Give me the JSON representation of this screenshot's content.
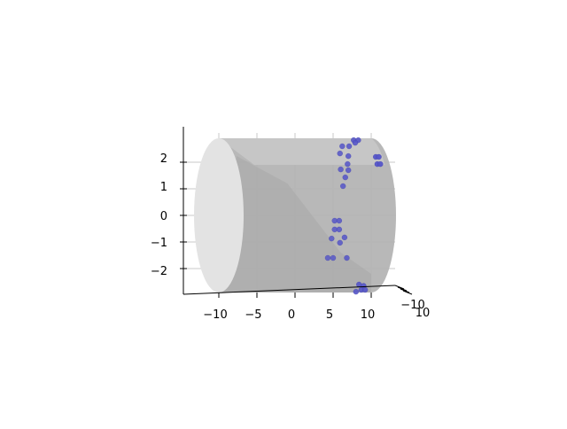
{
  "chart_data": {
    "type": "scatter",
    "projection": "3d",
    "title": "",
    "xlabel": "",
    "ylabel": "",
    "zlabel": "",
    "grid": true,
    "x_ticks": [
      "−10",
      "−5",
      "0",
      "5",
      "10"
    ],
    "z_ticks": [
      "2",
      "1",
      "0",
      "−1",
      "−2"
    ],
    "y_ticks": [
      "−10",
      "10"
    ],
    "xlim": [
      -14.5,
      12.5
    ],
    "zlim": [
      -3,
      3
    ],
    "surface": {
      "type": "cylinder",
      "axis": "x",
      "x_range": [
        -10,
        10
      ],
      "radius": 2.9,
      "color": "#bdbdbd"
    },
    "series": [
      {
        "color": "#5555c8",
        "points": [
          {
            "x": 7.7,
            "z": 2.83
          },
          {
            "x": 8.3,
            "z": 2.83
          },
          {
            "x": 7.9,
            "z": 2.73
          },
          {
            "x": 6.2,
            "z": 2.6
          },
          {
            "x": 7.1,
            "z": 2.6
          },
          {
            "x": 5.9,
            "z": 2.33
          },
          {
            "x": 7.0,
            "z": 2.23
          },
          {
            "x": 10.6,
            "z": 2.2
          },
          {
            "x": 11.0,
            "z": 2.2
          },
          {
            "x": 6.9,
            "z": 1.93
          },
          {
            "x": 10.8,
            "z": 1.93
          },
          {
            "x": 11.2,
            "z": 1.93
          },
          {
            "x": 6.0,
            "z": 1.73
          },
          {
            "x": 7.0,
            "z": 1.7
          },
          {
            "x": 6.6,
            "z": 1.43
          },
          {
            "x": 6.3,
            "z": 1.1
          },
          {
            "x": 5.2,
            "z": -0.2
          },
          {
            "x": 5.8,
            "z": -0.2
          },
          {
            "x": 5.2,
            "z": -0.53
          },
          {
            "x": 5.8,
            "z": -0.53
          },
          {
            "x": 6.5,
            "z": -0.83
          },
          {
            "x": 4.8,
            "z": -0.87
          },
          {
            "x": 5.9,
            "z": -1.03
          },
          {
            "x": 4.3,
            "z": -1.6
          },
          {
            "x": 5.0,
            "z": -1.6
          },
          {
            "x": 6.8,
            "z": -1.6
          },
          {
            "x": 8.4,
            "z": -2.6
          },
          {
            "x": 9.0,
            "z": -2.65
          },
          {
            "x": 8.7,
            "z": -2.8
          },
          {
            "x": 9.2,
            "z": -2.8
          },
          {
            "x": 8.0,
            "z": -2.87
          }
        ]
      }
    ]
  }
}
